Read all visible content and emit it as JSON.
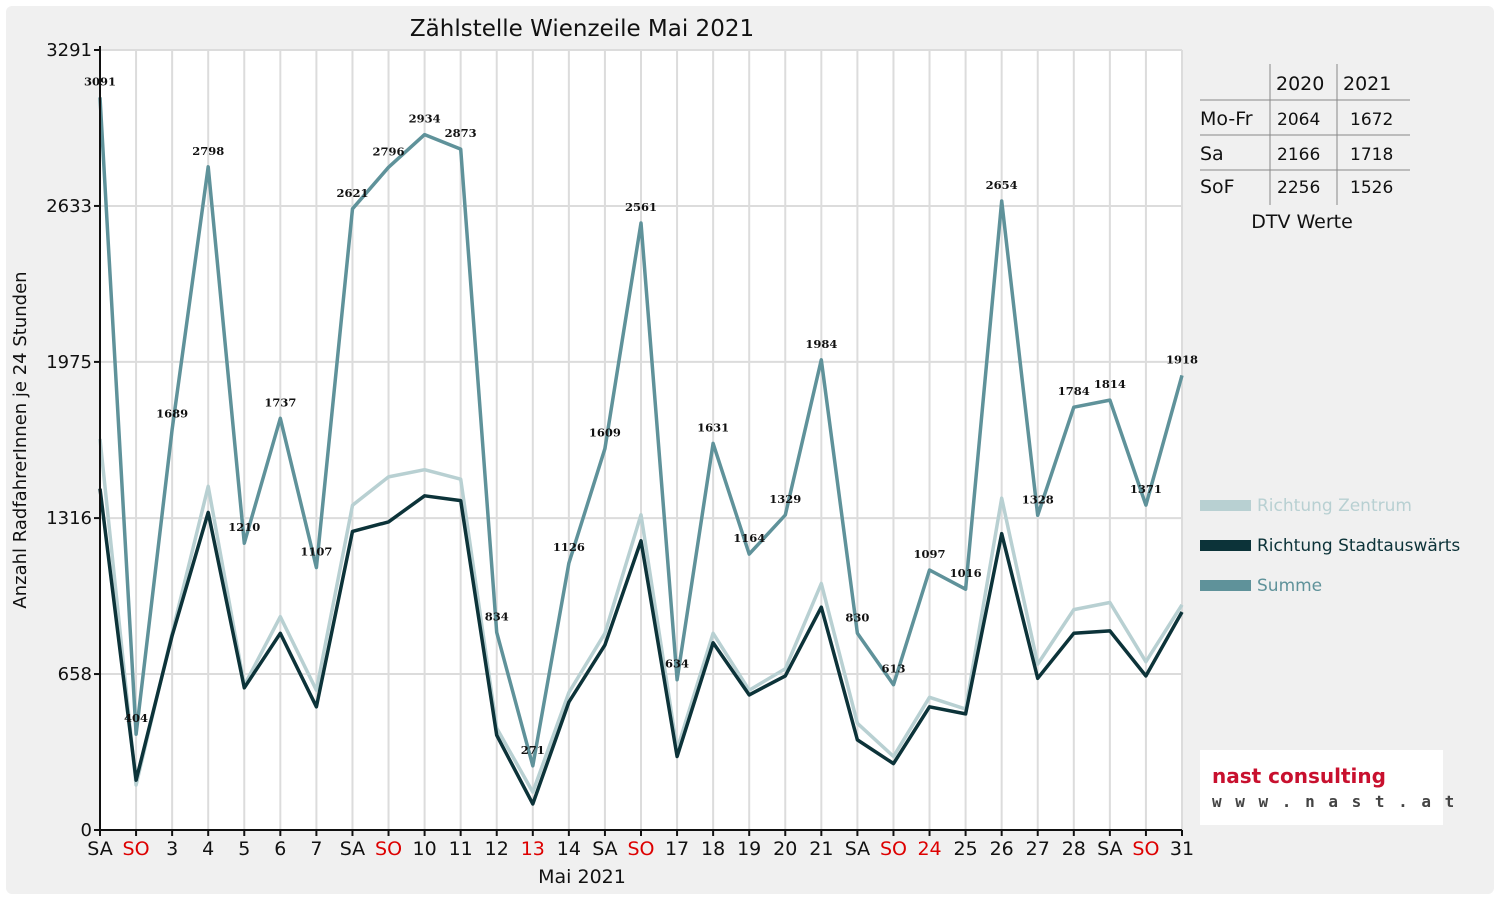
{
  "chart_data": {
    "type": "line",
    "title": "Zählstelle Wienzeile Mai 2021",
    "ylabel": "Anzahl RadfahrerInnen je 24 Stunden",
    "xlabel": "Mai 2021",
    "ylim": [
      0,
      3291
    ],
    "yticks": [
      "0",
      "658",
      "1316",
      "1975",
      "2633",
      "3291"
    ],
    "categories": [
      "SA",
      "SO",
      "3",
      "4",
      "5",
      "6",
      "7",
      "SA",
      "SO",
      "10",
      "11",
      "12",
      "13",
      "14",
      "SA",
      "SO",
      "17",
      "18",
      "19",
      "20",
      "21",
      "SA",
      "SO",
      "24",
      "25",
      "26",
      "27",
      "28",
      "SA",
      "SO",
      "31"
    ],
    "category_colors": [
      "#111111",
      "#dd0000",
      "#111111",
      "#111111",
      "#111111",
      "#111111",
      "#111111",
      "#111111",
      "#dd0000",
      "#111111",
      "#111111",
      "#111111",
      "#dd0000",
      "#111111",
      "#111111",
      "#dd0000",
      "#111111",
      "#111111",
      "#111111",
      "#111111",
      "#111111",
      "#111111",
      "#dd0000",
      "#dd0000",
      "#111111",
      "#111111",
      "#111111",
      "#111111",
      "#111111",
      "#dd0000",
      "#111111"
    ],
    "grid": true,
    "legend_position": "right",
    "series": [
      {
        "name": "Richtung Zentrum",
        "color": "#b8d0d2",
        "values": [
          1650,
          190,
          830,
          1450,
          610,
          900,
          590,
          1370,
          1490,
          1520,
          1480,
          430,
          160,
          580,
          830,
          1330,
          340,
          830,
          590,
          680,
          1040,
          450,
          310,
          560,
          510,
          1400,
          700,
          930,
          960,
          710,
          950
        ]
      },
      {
        "name": "Richtung Stadtauswärts",
        "color": "#0c3339",
        "values": [
          1440,
          210,
          820,
          1340,
          600,
          830,
          520,
          1260,
          1300,
          1410,
          1390,
          400,
          110,
          540,
          780,
          1220,
          310,
          790,
          570,
          650,
          940,
          380,
          280,
          520,
          490,
          1250,
          640,
          830,
          840,
          650,
          920
        ]
      },
      {
        "name": "Summe",
        "color": "#5f929a",
        "values": [
          3091,
          404,
          1689,
          2798,
          1210,
          1737,
          1107,
          2621,
          2796,
          2934,
          2873,
          834,
          271,
          1126,
          1609,
          2561,
          634,
          1631,
          1164,
          1329,
          1984,
          830,
          613,
          1097,
          1016,
          2654,
          1328,
          1784,
          1814,
          1371,
          1918
        ]
      }
    ],
    "data_labels": [
      "3091",
      "404",
      "1689",
      "2798",
      "1210",
      "1737",
      "1107",
      "2621",
      "2796",
      "2934",
      "2873",
      "834",
      "271",
      "1126",
      "1609",
      "2561",
      "634",
      "1631",
      "1164",
      "1329",
      "1984",
      "830",
      "613",
      "1097",
      "1016",
      "2654",
      "1328",
      "1784",
      "1814",
      "1371",
      "1918"
    ]
  },
  "dtv_table": {
    "headers": [
      "2020",
      "2021"
    ],
    "rows": [
      {
        "label": "Mo-Fr",
        "v2020": "2064",
        "v2021": "1672"
      },
      {
        "label": "Sa",
        "v2020": "2166",
        "v2021": "1718"
      },
      {
        "label": "SoF",
        "v2020": "2256",
        "v2021": "1526"
      }
    ],
    "caption": "DTV Werte"
  },
  "logo": {
    "main": "nast consulting",
    "sub": "w w w . n a s t . a t",
    "main_color": "#c8102e"
  }
}
